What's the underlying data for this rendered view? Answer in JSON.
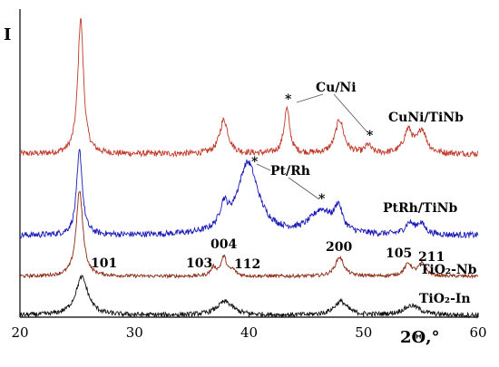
{
  "chart_data": {
    "type": "line",
    "xlabel": "2Θ,°",
    "ylabel": "I",
    "xlim": [
      20,
      60
    ],
    "xticks": [
      20,
      30,
      40,
      50,
      60
    ],
    "grid": false,
    "series": [
      {
        "name": "CuNi/TiNb",
        "color": "#c0392b",
        "baseline": 0.0,
        "noise": 0.045,
        "peaks": [
          {
            "x": 25.3,
            "h": 1.0,
            "w": 0.3
          },
          {
            "x": 37.8,
            "h": 0.25,
            "w": 0.45
          },
          {
            "x": 43.3,
            "h": 0.33,
            "w": 0.3
          },
          {
            "x": 47.9,
            "h": 0.25,
            "w": 0.45
          },
          {
            "x": 50.4,
            "h": 0.06,
            "w": 0.3
          },
          {
            "x": 53.9,
            "h": 0.17,
            "w": 0.45
          },
          {
            "x": 55.1,
            "h": 0.17,
            "w": 0.45
          }
        ]
      },
      {
        "name": "PtRh/TiNb",
        "color": "#1a1ab8",
        "baseline": 0.0,
        "noise": 0.045,
        "peaks": [
          {
            "x": 25.2,
            "h": 0.62,
            "w": 0.3
          },
          {
            "x": 37.8,
            "h": 0.16,
            "w": 0.4
          },
          {
            "x": 39.9,
            "h": 0.53,
            "w": 1.1
          },
          {
            "x": 46.3,
            "h": 0.17,
            "w": 1.2
          },
          {
            "x": 47.8,
            "h": 0.17,
            "w": 0.4
          },
          {
            "x": 54.0,
            "h": 0.08,
            "w": 0.45
          },
          {
            "x": 55.0,
            "h": 0.08,
            "w": 0.45
          }
        ]
      },
      {
        "name": "TiO₂-Nb",
        "color": "#8b2b14",
        "baseline": 0.0,
        "noise": 0.025,
        "peaks": [
          {
            "x": 25.2,
            "h": 0.63,
            "w": 0.35
          },
          {
            "x": 36.9,
            "h": 0.06,
            "w": 0.3
          },
          {
            "x": 37.8,
            "h": 0.14,
            "w": 0.3
          },
          {
            "x": 38.6,
            "h": 0.04,
            "w": 0.3
          },
          {
            "x": 47.9,
            "h": 0.14,
            "w": 0.45
          },
          {
            "x": 53.9,
            "h": 0.09,
            "w": 0.4
          },
          {
            "x": 55.1,
            "h": 0.09,
            "w": 0.4
          }
        ]
      },
      {
        "name": "TiO₂-In",
        "color": "#111111",
        "baseline": 0.0,
        "noise": 0.035,
        "peaks": [
          {
            "x": 25.4,
            "h": 0.28,
            "w": 0.65
          },
          {
            "x": 37.9,
            "h": 0.1,
            "w": 0.85
          },
          {
            "x": 48.0,
            "h": 0.1,
            "w": 0.7
          },
          {
            "x": 54.2,
            "h": 0.07,
            "w": 0.9
          }
        ]
      }
    ],
    "annotations": {
      "peak_indices": [
        "101",
        "103",
        "004",
        "112",
        "200",
        "105",
        "211"
      ],
      "phase_labels": [
        "Cu/Ni",
        "Pt/Rh"
      ],
      "marker": "*"
    }
  }
}
